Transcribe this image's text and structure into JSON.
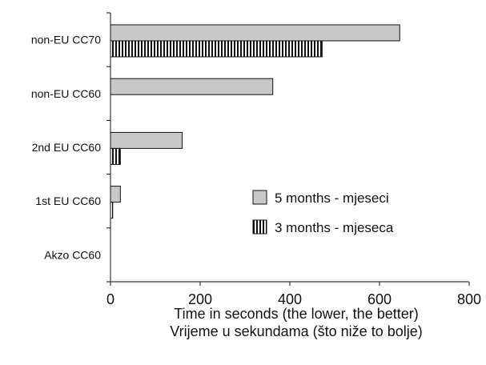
{
  "chart_data": {
    "type": "bar",
    "orientation": "horizontal",
    "categories": [
      "non-EU CC70",
      "non-EU CC60",
      "2nd EU CC60",
      "1st EU CC60",
      "Akzo CC60"
    ],
    "series": [
      {
        "name": "5 months - mjeseci",
        "values": [
          645,
          362,
          160,
          22,
          0
        ],
        "fill": "#c8c8c8",
        "pattern": "solid"
      },
      {
        "name": "3 months - mjeseca",
        "values": [
          472,
          null,
          22,
          5,
          0
        ],
        "fill": "#ffffff",
        "pattern": "vertical-stripes"
      }
    ],
    "xlabel": [
      "Time in seconds (the lower, the better)",
      "Vrijeme u sekundama (što niže to bolje)"
    ],
    "ylabel": "",
    "xlim": [
      0,
      800
    ],
    "xticks": [
      0,
      200,
      400,
      600,
      800
    ],
    "grid": false,
    "legend": "center-right"
  }
}
